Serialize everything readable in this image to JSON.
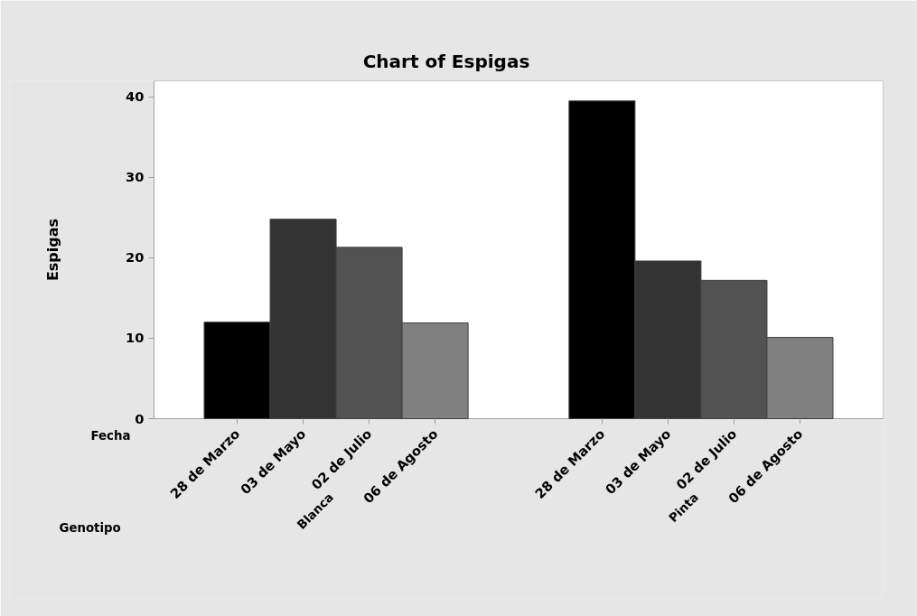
{
  "chart_data": {
    "type": "bar",
    "title": "Chart of Espigas",
    "ylabel": "Espigas",
    "categories": [
      "28 de Marzo",
      "03 de Mayo",
      "02 de Julio",
      "06 de Agosto",
      "28 de Marzo",
      "03 de Mayo",
      "02 de Julio",
      "06 de Agosto"
    ],
    "values": [
      12.0,
      24.8,
      21.3,
      11.9,
      39.5,
      19.6,
      17.2,
      10.1
    ],
    "colors": [
      "#000000",
      "#333333",
      "#525252",
      "#808080",
      "#000000",
      "#333333",
      "#525252",
      "#808080"
    ],
    "ylim": [
      0,
      42
    ],
    "yticks": [
      0,
      10,
      20,
      30,
      40
    ],
    "annotations": [
      "Fecha",
      "Genotipo",
      "Blanca",
      "Pinta"
    ]
  }
}
